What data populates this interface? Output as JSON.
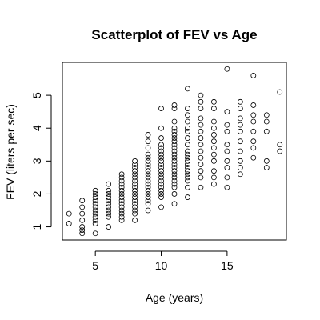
{
  "chart_data": {
    "type": "scatter",
    "title": "Scatterplot of FEV vs Age",
    "xlabel": "Age (years)",
    "ylabel": "FEV (liters per sec)",
    "xlim": [
      2.5,
      19.5
    ],
    "ylim": [
      0.6,
      6.0
    ],
    "x_ticks": [
      5,
      10,
      15
    ],
    "y_ticks": [
      1,
      2,
      3,
      4,
      5
    ],
    "grid": false,
    "points": [
      [
        3,
        1.1
      ],
      [
        3,
        1.4
      ],
      [
        4,
        0.8
      ],
      [
        4,
        0.9
      ],
      [
        4,
        1.0
      ],
      [
        4,
        1.2
      ],
      [
        4,
        1.4
      ],
      [
        4,
        1.6
      ],
      [
        4,
        1.8
      ],
      [
        5,
        0.8
      ],
      [
        5,
        1.1
      ],
      [
        5,
        1.2
      ],
      [
        5,
        1.3
      ],
      [
        5,
        1.4
      ],
      [
        5,
        1.5
      ],
      [
        5,
        1.6
      ],
      [
        5,
        1.7
      ],
      [
        5,
        1.8
      ],
      [
        5,
        1.9
      ],
      [
        5,
        2.0
      ],
      [
        5,
        2.1
      ],
      [
        6,
        1.0
      ],
      [
        6,
        1.3
      ],
      [
        6,
        1.4
      ],
      [
        6,
        1.5
      ],
      [
        6,
        1.6
      ],
      [
        6,
        1.7
      ],
      [
        6,
        1.8
      ],
      [
        6,
        1.9
      ],
      [
        6,
        2.0
      ],
      [
        6,
        2.1
      ],
      [
        6,
        2.3
      ],
      [
        7,
        1.2
      ],
      [
        7,
        1.3
      ],
      [
        7,
        1.4
      ],
      [
        7,
        1.5
      ],
      [
        7,
        1.6
      ],
      [
        7,
        1.7
      ],
      [
        7,
        1.8
      ],
      [
        7,
        1.9
      ],
      [
        7,
        2.0
      ],
      [
        7,
        2.1
      ],
      [
        7,
        2.2
      ],
      [
        7,
        2.3
      ],
      [
        7,
        2.4
      ],
      [
        7,
        2.5
      ],
      [
        7,
        2.6
      ],
      [
        8,
        1.2
      ],
      [
        8,
        1.4
      ],
      [
        8,
        1.5
      ],
      [
        8,
        1.6
      ],
      [
        8,
        1.7
      ],
      [
        8,
        1.8
      ],
      [
        8,
        1.9
      ],
      [
        8,
        2.0
      ],
      [
        8,
        2.1
      ],
      [
        8,
        2.2
      ],
      [
        8,
        2.3
      ],
      [
        8,
        2.4
      ],
      [
        8,
        2.5
      ],
      [
        8,
        2.6
      ],
      [
        8,
        2.7
      ],
      [
        8,
        2.8
      ],
      [
        8,
        2.9
      ],
      [
        8,
        3.0
      ],
      [
        9,
        1.5
      ],
      [
        9,
        1.7
      ],
      [
        9,
        1.8
      ],
      [
        9,
        1.9
      ],
      [
        9,
        2.0
      ],
      [
        9,
        2.1
      ],
      [
        9,
        2.2
      ],
      [
        9,
        2.3
      ],
      [
        9,
        2.4
      ],
      [
        9,
        2.5
      ],
      [
        9,
        2.6
      ],
      [
        9,
        2.7
      ],
      [
        9,
        2.8
      ],
      [
        9,
        2.9
      ],
      [
        9,
        3.0
      ],
      [
        9,
        3.1
      ],
      [
        9,
        3.2
      ],
      [
        9,
        3.4
      ],
      [
        9,
        3.6
      ],
      [
        9,
        3.8
      ],
      [
        10,
        1.6
      ],
      [
        10,
        1.9
      ],
      [
        10,
        2.0
      ],
      [
        10,
        2.1
      ],
      [
        10,
        2.2
      ],
      [
        10,
        2.3
      ],
      [
        10,
        2.4
      ],
      [
        10,
        2.5
      ],
      [
        10,
        2.6
      ],
      [
        10,
        2.7
      ],
      [
        10,
        2.8
      ],
      [
        10,
        2.9
      ],
      [
        10,
        3.0
      ],
      [
        10,
        3.1
      ],
      [
        10,
        3.2
      ],
      [
        10,
        3.3
      ],
      [
        10,
        3.4
      ],
      [
        10,
        3.5
      ],
      [
        10,
        3.7
      ],
      [
        10,
        4.0
      ],
      [
        10,
        4.6
      ],
      [
        11,
        1.7
      ],
      [
        11,
        2.0
      ],
      [
        11,
        2.2
      ],
      [
        11,
        2.3
      ],
      [
        11,
        2.4
      ],
      [
        11,
        2.5
      ],
      [
        11,
        2.6
      ],
      [
        11,
        2.7
      ],
      [
        11,
        2.8
      ],
      [
        11,
        2.9
      ],
      [
        11,
        3.0
      ],
      [
        11,
        3.1
      ],
      [
        11,
        3.2
      ],
      [
        11,
        3.3
      ],
      [
        11,
        3.4
      ],
      [
        11,
        3.5
      ],
      [
        11,
        3.6
      ],
      [
        11,
        3.7
      ],
      [
        11,
        3.8
      ],
      [
        11,
        3.9
      ],
      [
        11,
        4.0
      ],
      [
        11,
        4.2
      ],
      [
        11,
        4.6
      ],
      [
        11,
        4.7
      ],
      [
        12,
        1.9
      ],
      [
        12,
        2.2
      ],
      [
        12,
        2.4
      ],
      [
        12,
        2.5
      ],
      [
        12,
        2.6
      ],
      [
        12,
        2.7
      ],
      [
        12,
        2.8
      ],
      [
        12,
        2.9
      ],
      [
        12,
        3.0
      ],
      [
        12,
        3.1
      ],
      [
        12,
        3.2
      ],
      [
        12,
        3.3
      ],
      [
        12,
        3.5
      ],
      [
        12,
        3.7
      ],
      [
        12,
        3.9
      ],
      [
        12,
        4.0
      ],
      [
        12,
        4.2
      ],
      [
        12,
        4.4
      ],
      [
        12,
        4.6
      ],
      [
        12,
        5.2
      ],
      [
        13,
        2.2
      ],
      [
        13,
        2.5
      ],
      [
        13,
        2.7
      ],
      [
        13,
        2.9
      ],
      [
        13,
        3.1
      ],
      [
        13,
        3.3
      ],
      [
        13,
        3.5
      ],
      [
        13,
        3.7
      ],
      [
        13,
        3.9
      ],
      [
        13,
        4.1
      ],
      [
        13,
        4.3
      ],
      [
        13,
        4.6
      ],
      [
        13,
        4.8
      ],
      [
        13,
        5.0
      ],
      [
        14,
        2.3
      ],
      [
        14,
        2.5
      ],
      [
        14,
        2.7
      ],
      [
        14,
        3.0
      ],
      [
        14,
        3.2
      ],
      [
        14,
        3.4
      ],
      [
        14,
        3.6
      ],
      [
        14,
        3.8
      ],
      [
        14,
        4.0
      ],
      [
        14,
        4.2
      ],
      [
        14,
        4.6
      ],
      [
        14,
        4.8
      ],
      [
        15,
        2.2
      ],
      [
        15,
        2.5
      ],
      [
        15,
        2.8
      ],
      [
        15,
        3.0
      ],
      [
        15,
        3.3
      ],
      [
        15,
        3.5
      ],
      [
        15,
        3.9
      ],
      [
        15,
        4.1
      ],
      [
        15,
        4.5
      ],
      [
        15,
        5.8
      ],
      [
        16,
        2.6
      ],
      [
        16,
        2.8
      ],
      [
        16,
        3.0
      ],
      [
        16,
        3.3
      ],
      [
        16,
        3.6
      ],
      [
        16,
        3.9
      ],
      [
        16,
        4.1
      ],
      [
        16,
        4.3
      ],
      [
        16,
        4.6
      ],
      [
        16,
        4.8
      ],
      [
        17,
        3.1
      ],
      [
        17,
        3.4
      ],
      [
        17,
        3.6
      ],
      [
        17,
        3.9
      ],
      [
        17,
        4.2
      ],
      [
        17,
        4.4
      ],
      [
        17,
        4.7
      ],
      [
        17,
        5.6
      ],
      [
        18,
        2.8
      ],
      [
        18,
        3.0
      ],
      [
        18,
        3.9
      ],
      [
        18,
        4.2
      ],
      [
        18,
        4.4
      ],
      [
        19,
        3.3
      ],
      [
        19,
        3.5
      ],
      [
        19,
        5.1
      ]
    ]
  }
}
